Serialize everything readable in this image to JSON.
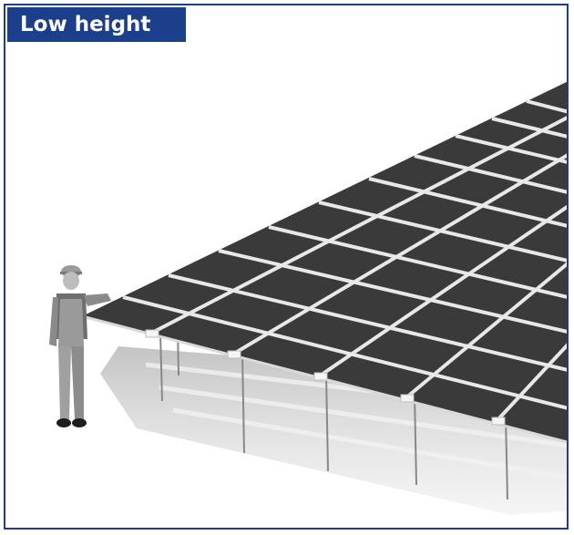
{
  "title": "Low height",
  "colors": {
    "accent": "#1b3f8b",
    "panel": "#3a3a3a",
    "rail": "#e8e8e8",
    "shadow": "#cfcfcf",
    "worker": "#8a8a8a"
  },
  "illustration": {
    "subject": "ground-mounted-solar-panel-array",
    "figure": "worker-silhouette"
  }
}
